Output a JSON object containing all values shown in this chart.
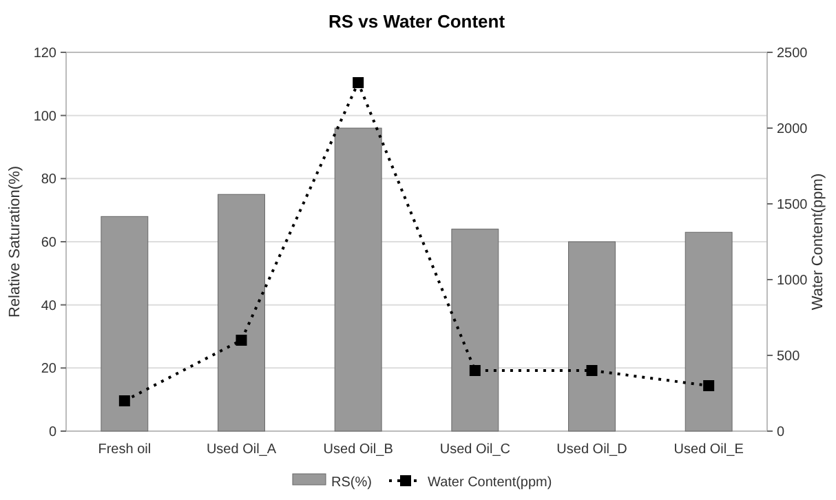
{
  "chart_data": {
    "type": "bar",
    "title": "RS vs Water Content",
    "ylabel": "Relative Saturation(%)",
    "y2label": "Water Content(ppm)",
    "categories": [
      "Fresh oil",
      "Used Oil_A",
      "Used Oil_B",
      "Used Oil_C",
      "Used Oil_D",
      "Used Oil_E"
    ],
    "series": [
      {
        "name": "RS(%)",
        "color": "#999999",
        "values": [
          68,
          75,
          96,
          64,
          60,
          63
        ]
      },
      {
        "name": "Water Content(ppm)",
        "type": "line",
        "axis": "y2",
        "color": "#000000",
        "marker": "square",
        "line_style": "dotted",
        "values": [
          200,
          600,
          2300,
          400,
          400,
          300
        ]
      }
    ],
    "ylim": [
      0,
      120
    ],
    "yticks": [
      0,
      20,
      40,
      60,
      80,
      100,
      120
    ],
    "y2lim": [
      0,
      2500
    ],
    "y2ticks": [
      0,
      500,
      1000,
      1500,
      2000,
      2500
    ],
    "grid": "y",
    "legend": "bottom"
  }
}
